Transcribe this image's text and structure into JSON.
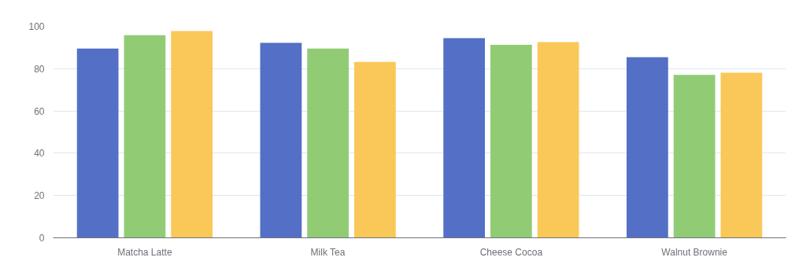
{
  "chart_data": {
    "type": "bar",
    "categories": [
      "Matcha Latte",
      "Milk Tea",
      "Cheese Cocoa",
      "Walnut Brownie"
    ],
    "series": [
      {
        "color": "#5470c6",
        "values": [
          89.5,
          92.2,
          94.4,
          85.4
        ]
      },
      {
        "color": "#91cc75",
        "values": [
          95.8,
          89.5,
          91.3,
          77.0
        ]
      },
      {
        "color": "#fac858",
        "values": [
          97.8,
          83.2,
          92.6,
          78.1
        ]
      }
    ],
    "ylim": [
      0,
      100
    ],
    "yticks": [
      0,
      20,
      40,
      60,
      80,
      100
    ],
    "grid": "y"
  }
}
